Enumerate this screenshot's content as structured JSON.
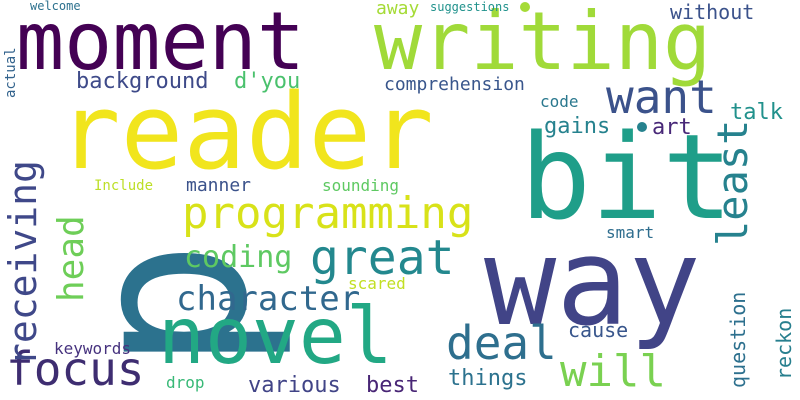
{
  "words": [
    {
      "text": "p",
      "color": "#2c728e"
    },
    {
      "text": "reader",
      "color": "#f1e51d"
    },
    {
      "text": "way",
      "color": "#414487"
    },
    {
      "text": "bit",
      "color": "#1f9e89"
    },
    {
      "text": "moment",
      "color": "#440154"
    },
    {
      "text": "writing",
      "color": "#a0da39"
    },
    {
      "text": "novel",
      "color": "#22a884"
    },
    {
      "text": "programming",
      "color": "#d8e219"
    },
    {
      "text": "focus",
      "color": "#3e2d71"
    },
    {
      "text": "great",
      "color": "#23888e"
    },
    {
      "text": "deal",
      "color": "#2e6f8e"
    },
    {
      "text": "want",
      "color": "#3b528b"
    },
    {
      "text": "least",
      "color": "#26828e"
    },
    {
      "text": "will",
      "color": "#7ad151"
    },
    {
      "text": "receiving",
      "color": "#3f4889"
    },
    {
      "text": "head",
      "color": "#6ece58"
    },
    {
      "text": "character",
      "color": "#31688e"
    },
    {
      "text": "coding",
      "color": "#5ec962"
    },
    {
      "text": "background",
      "color": "#3e4a89"
    },
    {
      "text": "d'you",
      "color": "#4ac16d"
    },
    {
      "text": "various",
      "color": "#414487"
    },
    {
      "text": "best",
      "color": "#482575"
    },
    {
      "text": "things",
      "color": "#2c728e"
    },
    {
      "text": "manner",
      "color": "#3b528b"
    },
    {
      "text": "reckon",
      "color": "#277f8e"
    },
    {
      "text": "question",
      "color": "#2d708e"
    },
    {
      "text": "comprehension",
      "color": "#39568c"
    },
    {
      "text": "gains",
      "color": "#26828e"
    },
    {
      "text": "art",
      "color": "#482878"
    },
    {
      "text": "talk",
      "color": "#21918c"
    },
    {
      "text": "code",
      "color": "#2a788e"
    },
    {
      "text": "without",
      "color": "#3b528b"
    },
    {
      "text": "away",
      "color": "#a5db36"
    },
    {
      "text": "suggestions",
      "color": "#20928c"
    },
    {
      "text": "sounding",
      "color": "#5ec962"
    },
    {
      "text": "smart",
      "color": "#2e6d8e"
    },
    {
      "text": "cause",
      "color": "#39568c"
    },
    {
      "text": "keywords",
      "color": "#46327e"
    },
    {
      "text": "drop",
      "color": "#38b977"
    },
    {
      "text": "scared",
      "color": "#c2df23"
    },
    {
      "text": "Include",
      "color": "#bddf26"
    },
    {
      "text": "actual",
      "color": "#33638d"
    },
    {
      "text": "welcome",
      "color": "#2c718e"
    }
  ]
}
